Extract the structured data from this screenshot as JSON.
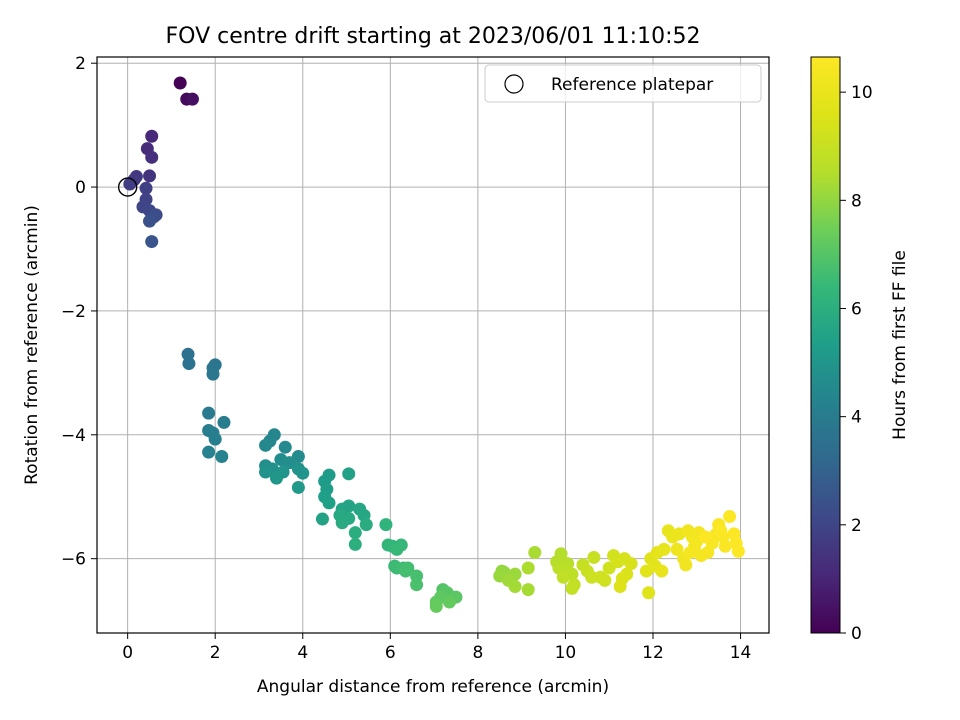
{
  "chart_data": {
    "type": "scatter",
    "title": "FOV centre drift starting at 2023/06/01 11:10:52",
    "xlabel": "Angular distance from reference (arcmin)",
    "ylabel": "Rotation from reference (arcmin)",
    "xlim": [
      -0.7,
      14.65
    ],
    "ylim": [
      -7.2,
      2.1
    ],
    "xticks": [
      0,
      2,
      4,
      6,
      8,
      10,
      12,
      14
    ],
    "yticks": [
      -6,
      -4,
      -2,
      0,
      2
    ],
    "xtick_labels": [
      "0",
      "2",
      "4",
      "6",
      "8",
      "10",
      "12",
      "14"
    ],
    "ytick_labels": [
      "−6",
      "−4",
      "−2",
      "0",
      "2"
    ],
    "grid": true,
    "legend": {
      "position": "top-right",
      "entries": [
        {
          "label": "Reference platepar",
          "marker": "open-circle"
        }
      ]
    },
    "colorbar": {
      "label": "Hours from first FF file",
      "colormap": "viridis",
      "range": [
        0,
        10.65
      ],
      "ticks": [
        0,
        2,
        4,
        6,
        8,
        10
      ],
      "tick_labels": [
        "0",
        "2",
        "4",
        "6",
        "8",
        "10"
      ]
    },
    "reference_point": {
      "x": 0,
      "y": 0
    },
    "series": [
      {
        "points": [
          [
            1.2,
            1.68,
            0.05
          ],
          [
            1.35,
            1.42,
            0.25
          ],
          [
            1.48,
            1.42,
            0.4
          ],
          [
            0.55,
            0.82,
            1.1
          ],
          [
            0.45,
            0.62,
            1.2
          ],
          [
            0.55,
            0.48,
            1.3
          ],
          [
            0.5,
            0.18,
            1.45
          ],
          [
            0.2,
            0.17,
            1.55
          ],
          [
            0.15,
            0.12,
            1.6
          ],
          [
            0.05,
            0.05,
            1.7
          ],
          [
            0.42,
            -0.02,
            1.8
          ],
          [
            0.42,
            -0.2,
            1.9
          ],
          [
            0.35,
            -0.32,
            2.0
          ],
          [
            0.5,
            -0.38,
            2.1
          ],
          [
            0.65,
            -0.45,
            2.2
          ],
          [
            0.6,
            -0.48,
            2.3
          ],
          [
            0.5,
            -0.55,
            2.4
          ],
          [
            0.55,
            -0.88,
            2.55
          ],
          [
            1.38,
            -2.7,
            3.55
          ],
          [
            1.4,
            -2.85,
            3.6
          ],
          [
            1.95,
            -2.92,
            3.7
          ],
          [
            2.0,
            -2.87,
            3.75
          ],
          [
            1.95,
            -3.02,
            3.8
          ],
          [
            1.85,
            -3.65,
            3.95
          ],
          [
            2.2,
            -3.8,
            4.0
          ],
          [
            1.85,
            -3.93,
            4.05
          ],
          [
            1.95,
            -3.97,
            4.1
          ],
          [
            2.0,
            -4.07,
            4.15
          ],
          [
            1.85,
            -4.28,
            4.2
          ],
          [
            2.15,
            -4.35,
            4.25
          ],
          [
            3.35,
            -4.0,
            4.4
          ],
          [
            3.25,
            -4.1,
            4.45
          ],
          [
            3.15,
            -4.17,
            4.5
          ],
          [
            3.6,
            -4.2,
            4.55
          ],
          [
            3.9,
            -4.35,
            4.6
          ],
          [
            3.5,
            -4.4,
            4.65
          ],
          [
            3.7,
            -4.45,
            4.7
          ],
          [
            3.15,
            -4.5,
            4.75
          ],
          [
            3.3,
            -4.55,
            4.8
          ],
          [
            3.9,
            -4.55,
            4.85
          ],
          [
            3.15,
            -4.6,
            4.9
          ],
          [
            4.0,
            -4.62,
            4.95
          ],
          [
            3.55,
            -4.6,
            5.0
          ],
          [
            3.4,
            -4.7,
            5.05
          ],
          [
            3.9,
            -4.85,
            5.1
          ],
          [
            4.6,
            -4.65,
            5.2
          ],
          [
            4.5,
            -4.75,
            5.25
          ],
          [
            4.55,
            -4.88,
            5.3
          ],
          [
            4.5,
            -5.0,
            5.35
          ],
          [
            4.6,
            -5.1,
            5.4
          ],
          [
            5.05,
            -4.63,
            5.45
          ],
          [
            4.45,
            -5.36,
            5.5
          ],
          [
            5.05,
            -5.15,
            5.55
          ],
          [
            4.9,
            -5.2,
            5.6
          ],
          [
            5.3,
            -5.2,
            5.65
          ],
          [
            5.4,
            -5.3,
            5.7
          ],
          [
            4.85,
            -5.3,
            5.75
          ],
          [
            5.05,
            -5.35,
            5.8
          ],
          [
            4.9,
            -5.42,
            5.85
          ],
          [
            5.45,
            -5.45,
            5.9
          ],
          [
            5.2,
            -5.58,
            5.95
          ],
          [
            5.2,
            -5.77,
            6.0
          ],
          [
            5.9,
            -5.45,
            6.2
          ],
          [
            5.95,
            -5.78,
            6.3
          ],
          [
            6.05,
            -5.8,
            6.35
          ],
          [
            6.25,
            -5.78,
            6.4
          ],
          [
            6.15,
            -5.85,
            6.45
          ],
          [
            6.1,
            -6.12,
            6.5
          ],
          [
            6.15,
            -6.15,
            6.55
          ],
          [
            6.3,
            -6.15,
            6.6
          ],
          [
            6.4,
            -6.15,
            6.65
          ],
          [
            6.35,
            -6.2,
            6.7
          ],
          [
            6.6,
            -6.28,
            6.75
          ],
          [
            6.6,
            -6.42,
            6.8
          ],
          [
            7.2,
            -6.5,
            7.0
          ],
          [
            7.3,
            -6.55,
            7.05
          ],
          [
            7.5,
            -6.62,
            7.1
          ],
          [
            7.15,
            -6.62,
            7.15
          ],
          [
            7.05,
            -6.7,
            7.2
          ],
          [
            7.35,
            -6.7,
            7.25
          ],
          [
            7.05,
            -6.77,
            7.3
          ],
          [
            8.55,
            -6.2,
            8.0
          ],
          [
            8.6,
            -6.22,
            8.05
          ],
          [
            8.5,
            -6.28,
            8.1
          ],
          [
            8.85,
            -6.25,
            8.15
          ],
          [
            8.7,
            -6.35,
            8.2
          ],
          [
            8.85,
            -6.45,
            8.25
          ],
          [
            9.15,
            -6.5,
            8.3
          ],
          [
            9.3,
            -5.9,
            8.35
          ],
          [
            9.15,
            -6.15,
            8.4
          ],
          [
            9.9,
            -5.92,
            8.5
          ],
          [
            9.8,
            -6.05,
            8.55
          ],
          [
            10.05,
            -6.08,
            8.6
          ],
          [
            9.85,
            -6.15,
            8.65
          ],
          [
            10.0,
            -6.2,
            8.7
          ],
          [
            10.15,
            -6.25,
            8.75
          ],
          [
            9.95,
            -6.3,
            8.8
          ],
          [
            10.2,
            -6.42,
            8.85
          ],
          [
            10.15,
            -6.48,
            8.9
          ],
          [
            10.4,
            -6.1,
            8.95
          ],
          [
            10.65,
            -5.98,
            9.0
          ],
          [
            10.5,
            -6.2,
            9.05
          ],
          [
            10.6,
            -6.3,
            9.1
          ],
          [
            10.8,
            -6.3,
            9.15
          ],
          [
            10.9,
            -6.35,
            9.2
          ],
          [
            11.0,
            -6.15,
            9.25
          ],
          [
            11.1,
            -5.95,
            9.3
          ],
          [
            11.2,
            -6.05,
            9.35
          ],
          [
            11.35,
            -6.0,
            9.4
          ],
          [
            11.5,
            -6.08,
            9.45
          ],
          [
            11.4,
            -6.25,
            9.5
          ],
          [
            11.3,
            -6.32,
            9.55
          ],
          [
            11.25,
            -6.45,
            9.6
          ],
          [
            11.9,
            -6.55,
            9.65
          ],
          [
            11.95,
            -6.0,
            9.7
          ],
          [
            11.85,
            -6.2,
            9.75
          ],
          [
            12.05,
            -6.12,
            9.8
          ],
          [
            12.1,
            -5.9,
            9.85
          ],
          [
            12.25,
            -5.85,
            9.9
          ],
          [
            12.2,
            -6.2,
            9.95
          ],
          [
            12.35,
            -5.55,
            10.0
          ],
          [
            12.45,
            -5.65,
            10.05
          ],
          [
            12.6,
            -5.6,
            10.1
          ],
          [
            12.55,
            -5.85,
            10.15
          ],
          [
            12.7,
            -6.0,
            10.2
          ],
          [
            12.75,
            -6.1,
            10.22
          ],
          [
            12.8,
            -5.55,
            10.25
          ],
          [
            12.9,
            -5.65,
            10.28
          ],
          [
            12.95,
            -5.8,
            10.3
          ],
          [
            13.05,
            -5.58,
            10.33
          ],
          [
            13.0,
            -5.72,
            10.35
          ],
          [
            12.85,
            -5.9,
            10.38
          ],
          [
            13.1,
            -5.95,
            10.4
          ],
          [
            13.25,
            -5.9,
            10.42
          ],
          [
            13.35,
            -5.75,
            10.45
          ],
          [
            13.45,
            -5.6,
            10.48
          ],
          [
            13.5,
            -5.45,
            10.5
          ],
          [
            13.6,
            -5.65,
            10.52
          ],
          [
            13.65,
            -5.8,
            10.55
          ],
          [
            13.75,
            -5.32,
            10.57
          ],
          [
            13.85,
            -5.6,
            10.59
          ],
          [
            13.9,
            -5.75,
            10.6
          ],
          [
            13.95,
            -5.88,
            10.62
          ],
          [
            13.55,
            -5.55,
            10.63
          ],
          [
            13.2,
            -5.65,
            10.64
          ]
        ]
      }
    ]
  }
}
